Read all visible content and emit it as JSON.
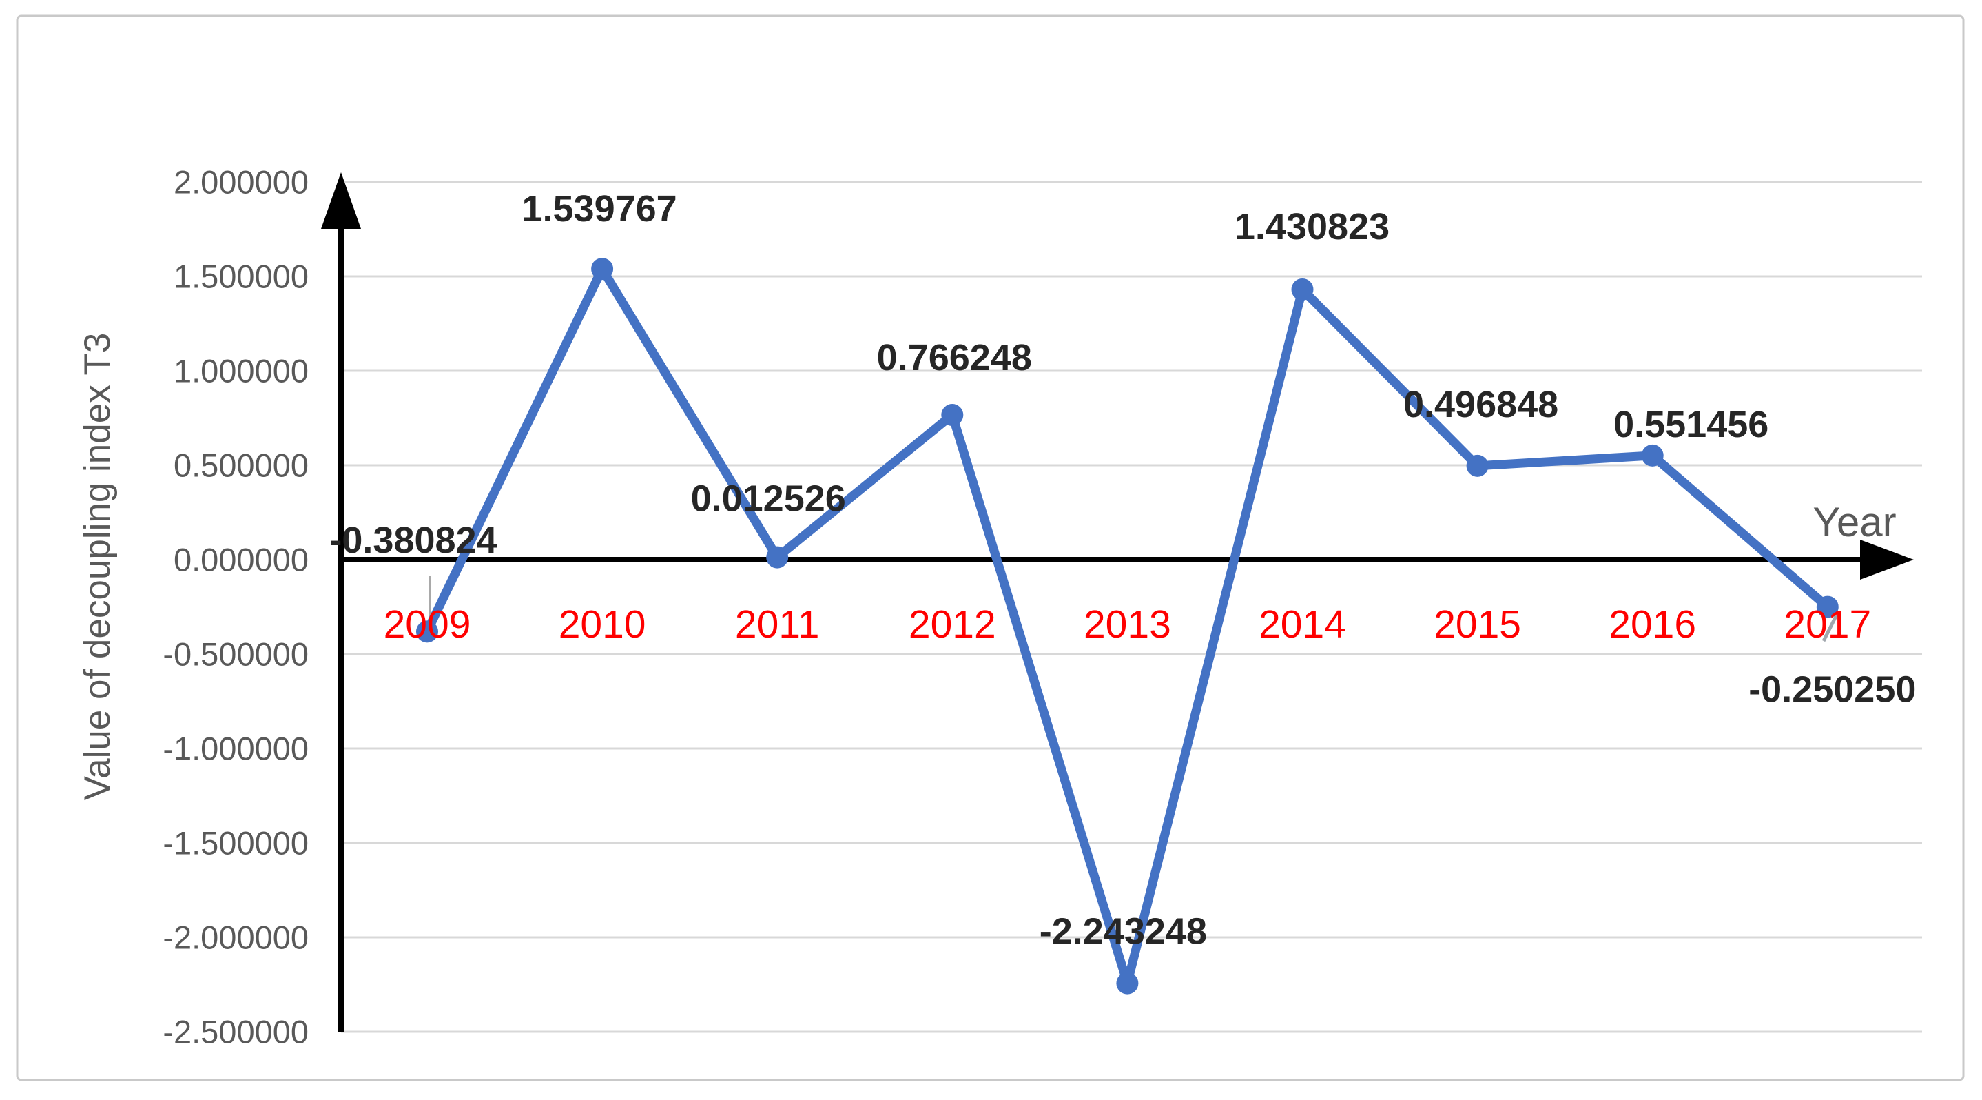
{
  "chart_data": {
    "type": "line",
    "title": "",
    "xlabel": "Year",
    "ylabel": "Value of decoupling index T3",
    "categories": [
      "2009",
      "2010",
      "2011",
      "2012",
      "2013",
      "2014",
      "2015",
      "2016",
      "2017"
    ],
    "values": [
      -0.380824,
      1.539767,
      0.012526,
      0.766248,
      -2.243248,
      1.430823,
      0.496848,
      0.551456,
      -0.25025
    ],
    "data_labels": [
      "-0.380824",
      "1.539767",
      "0.012526",
      "0.766248",
      "-2.243248",
      "1.430823",
      "0.496848",
      "0.551456",
      "-0.250250"
    ],
    "ytick_labels": [
      "2.000000",
      "1.500000",
      "1.000000",
      "0.500000",
      "0.000000",
      "-0.500000",
      "-1.000000",
      "-1.500000",
      "-2.000000",
      "-2.500000"
    ],
    "ylim": [
      -2.5,
      2.0
    ],
    "ytick_step": 0.5,
    "grid": true,
    "legend_position": "none",
    "marker": "circle",
    "colors": {
      "line": "#4472C4",
      "marker": "#4472C4",
      "data_label": "#262626",
      "tick_label": "#595959",
      "year_label": "#FF0000",
      "axis": "#000000",
      "gridline": "#D8D8D8",
      "axis_title": "#595959",
      "frame_border": "#C9C9C9",
      "background": "#FFFFFF"
    }
  }
}
